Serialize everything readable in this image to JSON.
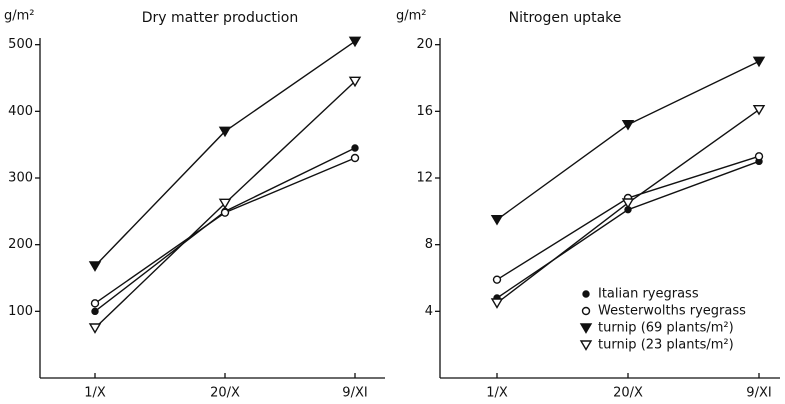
{
  "chart_data": [
    {
      "type": "line",
      "title": "Dry matter production",
      "y_label": "g/m²",
      "categories": [
        "1/X",
        "20/X",
        "9/XI"
      ],
      "ylim": [
        0,
        510
      ],
      "yticks": [
        100,
        200,
        300,
        400,
        500
      ],
      "series": [
        {
          "marker": "filled-circle",
          "color": "#111111",
          "values": [
            100,
            250,
            345
          ]
        },
        {
          "marker": "open-circle",
          "color": "#111111",
          "values": [
            112,
            248,
            330
          ]
        },
        {
          "marker": "filled-triangle",
          "color": "#111111",
          "values": [
            168,
            370,
            505
          ]
        },
        {
          "marker": "open-triangle",
          "color": "#111111",
          "values": [
            75,
            262,
            445
          ]
        }
      ]
    },
    {
      "type": "line",
      "title": "Nitrogen uptake",
      "y_label": "g/m²",
      "categories": [
        "1/X",
        "20/X",
        "9/XI"
      ],
      "ylim": [
        0,
        20.4
      ],
      "yticks": [
        4,
        8,
        12,
        16,
        20
      ],
      "series": [
        {
          "name": "Italian ryegrass",
          "marker": "filled-circle",
          "color": "#111111",
          "values": [
            4.8,
            10.1,
            13.0
          ]
        },
        {
          "name": "Westerwolths ryegrass",
          "marker": "open-circle",
          "color": "#111111",
          "values": [
            5.9,
            10.8,
            13.3
          ]
        },
        {
          "name": "turnip (69 plants/m²)",
          "marker": "filled-triangle",
          "color": "#111111",
          "values": [
            9.5,
            15.2,
            19.0
          ]
        },
        {
          "name": "turnip (23 plants/m²)",
          "marker": "open-triangle",
          "color": "#111111",
          "values": [
            4.5,
            10.5,
            16.1
          ]
        }
      ]
    }
  ]
}
